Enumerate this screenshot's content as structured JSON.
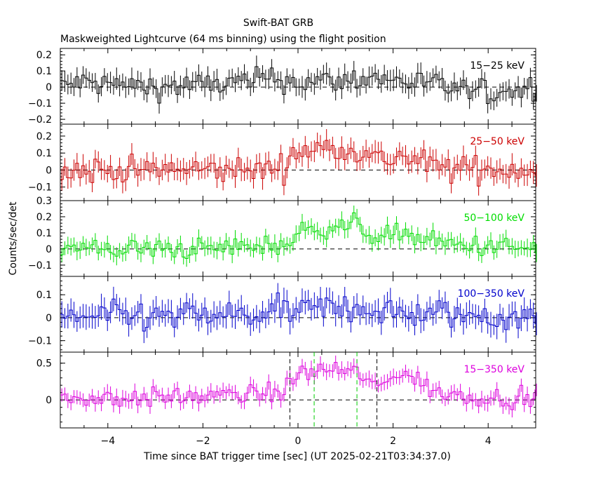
{
  "chart_data": {
    "type": "line",
    "title": "Swift-BAT GRB",
    "subtitle": "Maskweighted Lightcurve (64 ms binning) using the flight position",
    "xlabel": "Time since BAT trigger time [sec] (UT 2025-02-21T03:34:37.0)",
    "ylabel": "Counts/sec/det",
    "xlim": [
      -5,
      5
    ],
    "xticks": [
      -4,
      -2,
      0,
      2,
      4
    ],
    "xtick_labels": [
      "−4",
      "−2",
      "0",
      "2",
      "4"
    ],
    "bin_width_sec": 0.064,
    "panels": [
      {
        "label": "15−25 keV",
        "color": "#000000",
        "ylim": [
          -0.23,
          0.24
        ],
        "yticks": [
          -0.2,
          -0.1,
          0,
          0.1,
          0.2
        ],
        "ytick_labels": [
          "−0.2",
          "−0.1",
          "0",
          "0.1",
          "0.2"
        ],
        "profile": [
          [
            -5,
            0.0
          ],
          [
            -4.6,
            0.03
          ],
          [
            -3.0,
            0.0
          ],
          [
            -1.0,
            0.03
          ],
          [
            -0.6,
            0.06
          ],
          [
            0.0,
            0.03
          ],
          [
            1.0,
            0.04
          ],
          [
            1.5,
            0.06
          ],
          [
            2.5,
            0.03
          ],
          [
            3.9,
            -0.04
          ],
          [
            5,
            0.0
          ]
        ],
        "noise": 0.06
      },
      {
        "label": "25−50 keV",
        "color": "#cc0000",
        "ylim": [
          -0.18,
          0.27
        ],
        "yticks": [
          -0.1,
          0,
          0.1,
          0.2
        ],
        "ytick_labels": [
          "−0.1",
          "0",
          "0.1",
          "0.2"
        ],
        "profile": [
          [
            -5,
            0.0
          ],
          [
            -2.0,
            0.0
          ],
          [
            -0.8,
            0.0
          ],
          [
            -0.3,
            0.02
          ],
          [
            0.0,
            0.11
          ],
          [
            1.0,
            0.14
          ],
          [
            1.7,
            0.06
          ],
          [
            2.2,
            0.08
          ],
          [
            3.0,
            0.01
          ],
          [
            5,
            0.0
          ]
        ],
        "noise": 0.06
      },
      {
        "label": "50−100 keV",
        "color": "#00dd00",
        "ylim": [
          -0.17,
          0.3
        ],
        "yticks": [
          -0.1,
          0,
          0.1,
          0.2,
          0.3
        ],
        "ytick_labels": [
          "−0.1",
          "0",
          "0.1",
          "0.2",
          "0.3"
        ],
        "profile": [
          [
            -5,
            0.0
          ],
          [
            -2.0,
            0.0
          ],
          [
            -0.2,
            0.03
          ],
          [
            0.0,
            0.1
          ],
          [
            0.7,
            0.14
          ],
          [
            1.2,
            0.15
          ],
          [
            1.7,
            0.07
          ],
          [
            2.2,
            0.1
          ],
          [
            3.0,
            0.03
          ],
          [
            5,
            0.0
          ]
        ],
        "noise": 0.05
      },
      {
        "label": "100−350 keV",
        "color": "#0000cc",
        "ylim": [
          -0.15,
          0.18
        ],
        "yticks": [
          -0.1,
          0,
          0.1
        ],
        "ytick_labels": [
          "−0.1",
          "0",
          "0.1"
        ],
        "profile": [
          [
            -5,
            0.0
          ],
          [
            -1.0,
            0.01
          ],
          [
            0.0,
            0.03
          ],
          [
            1.2,
            0.05
          ],
          [
            2.0,
            0.02
          ],
          [
            5,
            0.0
          ]
        ],
        "noise": 0.05
      },
      {
        "label": "15−350 keV",
        "color": "#dd00dd",
        "ylim": [
          -0.38,
          0.65
        ],
        "yticks": [
          0,
          0.5
        ],
        "ytick_labels": [
          "0",
          "0.5"
        ],
        "profile": [
          [
            -5,
            0.02
          ],
          [
            -3.0,
            0.03
          ],
          [
            -1.0,
            0.07
          ],
          [
            -0.3,
            0.12
          ],
          [
            0.0,
            0.35
          ],
          [
            0.6,
            0.42
          ],
          [
            1.2,
            0.38
          ],
          [
            1.7,
            0.16
          ],
          [
            2.1,
            0.4
          ],
          [
            3.0,
            0.08
          ],
          [
            5,
            0.0
          ]
        ],
        "noise": 0.1
      }
    ],
    "markers": [
      {
        "x": -0.17,
        "color": "#000000"
      },
      {
        "x": 1.66,
        "color": "#000000"
      },
      {
        "x": 0.34,
        "color": "#00cc00"
      },
      {
        "x": 1.24,
        "color": "#00cc00"
      }
    ]
  }
}
